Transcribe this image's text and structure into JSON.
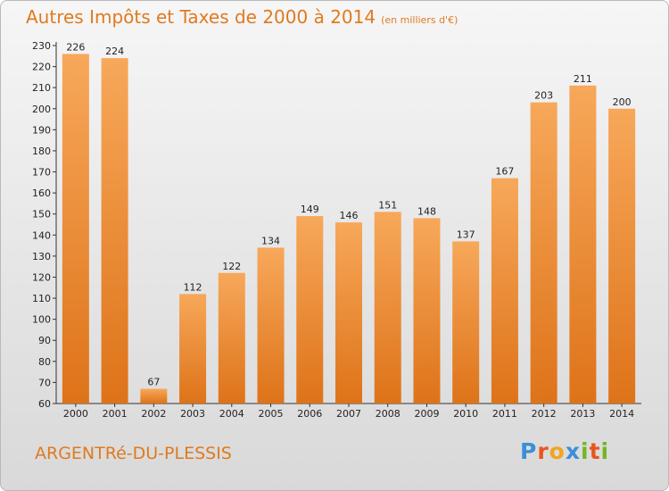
{
  "header": {
    "title": "Autres Impôts et Taxes de 2000 à 2014",
    "unit": "(en milliers d'€)"
  },
  "footer": {
    "commune": "ARGENTRé-DU-PLESSIS",
    "logo_letters": [
      "P",
      "r",
      "o",
      "x",
      "i",
      "t",
      "i"
    ],
    "logo_colors": [
      "#3a8fd8",
      "#e8561e",
      "#f4a41c",
      "#3a8fd8",
      "#73b627",
      "#e8561e",
      "#73b627"
    ]
  },
  "colors": {
    "title": "#e07a1f",
    "bar_top": "#f7a85a",
    "bar_bottom": "#de7319",
    "axis": "#333333",
    "grid": "#c8c8c8"
  },
  "chart_data": {
    "type": "bar",
    "categories": [
      "2000",
      "2001",
      "2002",
      "2003",
      "2004",
      "2005",
      "2006",
      "2007",
      "2008",
      "2009",
      "2010",
      "2011",
      "2012",
      "2013",
      "2014"
    ],
    "values": [
      226,
      224,
      67,
      112,
      122,
      134,
      149,
      146,
      151,
      148,
      137,
      167,
      203,
      211,
      200
    ],
    "title": "Autres Impôts et Taxes de 2000 à 2014",
    "subtitle": "(en milliers d'€)",
    "ylim": [
      60,
      230
    ],
    "yticks": [
      60,
      70,
      80,
      90,
      100,
      110,
      120,
      130,
      140,
      150,
      160,
      170,
      180,
      190,
      200,
      210,
      220,
      230
    ],
    "grid": false,
    "data_labels": true
  }
}
